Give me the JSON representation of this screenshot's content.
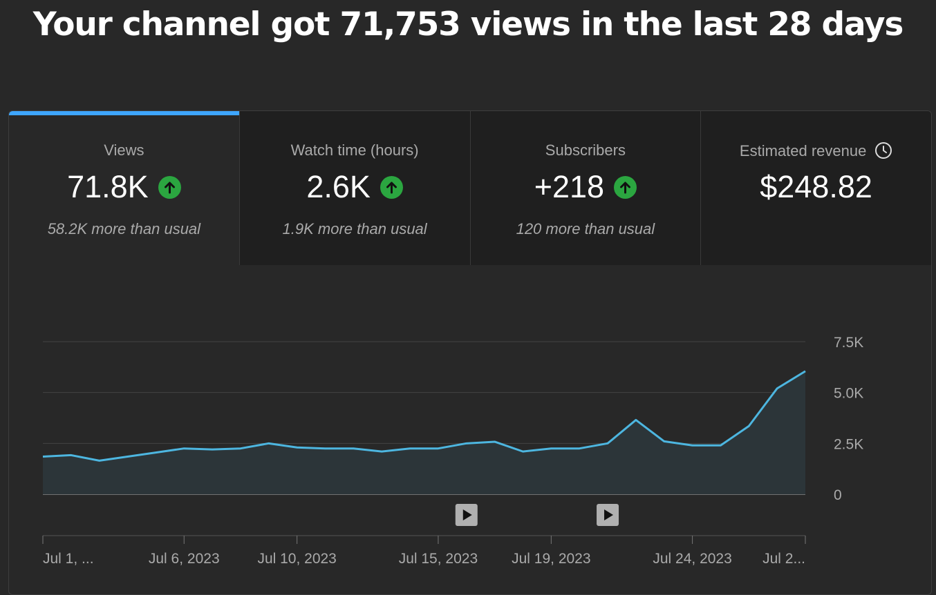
{
  "headline": "Your channel got 71,753 views in the last 28 days",
  "tabs": [
    {
      "label": "Views",
      "value": "71.8K",
      "sub": "58.2K more than usual",
      "trend": "up"
    },
    {
      "label": "Watch time (hours)",
      "value": "2.6K",
      "sub": "1.9K more than usual",
      "trend": "up"
    },
    {
      "label": "Subscribers",
      "value": "+218",
      "sub": "120 more than usual",
      "trend": "up"
    },
    {
      "label": "Estimated revenue",
      "value": "$248.82",
      "sub": "",
      "trend": "none"
    }
  ],
  "colors": {
    "accent": "#3ea6ff",
    "line": "#4db6e0",
    "up": "#2ba640",
    "background": "#282828"
  },
  "chart_data": {
    "type": "area",
    "x": [
      "Jul 1, 2023",
      "Jul 2, 2023",
      "Jul 3, 2023",
      "Jul 4, 2023",
      "Jul 5, 2023",
      "Jul 6, 2023",
      "Jul 7, 2023",
      "Jul 8, 2023",
      "Jul 9, 2023",
      "Jul 10, 2023",
      "Jul 11, 2023",
      "Jul 12, 2023",
      "Jul 13, 2023",
      "Jul 14, 2023",
      "Jul 15, 2023",
      "Jul 16, 2023",
      "Jul 17, 2023",
      "Jul 18, 2023",
      "Jul 19, 2023",
      "Jul 20, 2023",
      "Jul 21, 2023",
      "Jul 22, 2023",
      "Jul 23, 2023",
      "Jul 24, 2023",
      "Jul 25, 2023",
      "Jul 26, 2023",
      "Jul 27, 2023",
      "Jul 28, 2023"
    ],
    "values": [
      1850,
      1920,
      1650,
      1850,
      2050,
      2250,
      2200,
      2250,
      2500,
      2300,
      2250,
      2250,
      2100,
      2250,
      2250,
      2500,
      2580,
      2100,
      2250,
      2250,
      2500,
      3650,
      2600,
      2400,
      2400,
      3350,
      5200,
      6050
    ],
    "yticks": [
      "0",
      "2.5K",
      "5.0K",
      "7.5K"
    ],
    "ytick_values": [
      0,
      2500,
      5000,
      7500
    ],
    "ylim": [
      0,
      7500
    ],
    "xtick_labels": [
      "Jul 1, ...",
      "Jul 6, 2023",
      "Jul 10, 2023",
      "Jul 15, 2023",
      "Jul 19, 2023",
      "Jul 24, 2023",
      "Jul 2..."
    ],
    "xtick_dates": [
      "Jul 1, 2023",
      "Jul 6, 2023",
      "Jul 10, 2023",
      "Jul 15, 2023",
      "Jul 19, 2023",
      "Jul 24, 2023",
      "Jul 28, 2023"
    ],
    "video_markers": [
      "Jul 16, 2023",
      "Jul 21, 2023"
    ],
    "grid": true,
    "title": "",
    "xlabel": "",
    "ylabel": ""
  }
}
